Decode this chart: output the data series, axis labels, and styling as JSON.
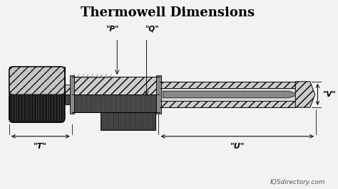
{
  "title": "Thermowell Dimensions",
  "title_fontsize": 13,
  "bg_color": "#f2f2f2",
  "label_P": "\"P\"",
  "label_Q": "\"Q\"",
  "label_T": "\"T\"",
  "label_U": "\"U\"",
  "label_V": "\"V\"",
  "watermark": "IQSdirectory.com",
  "dark_body": "#1a1a1a",
  "dark_mid": "#3a3a3a",
  "dark_grad": "#555555",
  "hatch_fill": "#cccccc",
  "stem_fill": "#bbbbbb",
  "inner_fill": "#888888",
  "dim_color": "#111111",
  "white": "#ffffff"
}
